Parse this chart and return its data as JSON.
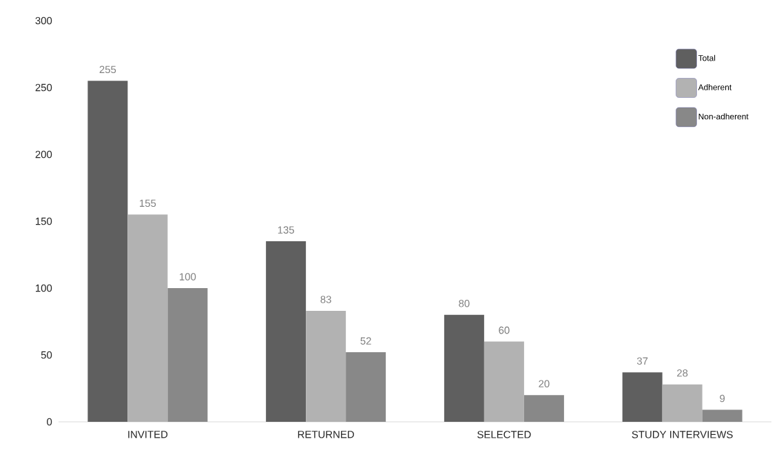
{
  "chart_data": {
    "type": "bar",
    "categories": [
      "INVITED",
      "RETURNED",
      "SELECTED",
      "STUDY INTERVIEWS"
    ],
    "series": [
      {
        "name": "Total",
        "color": "#5f5f5f",
        "values": [
          255,
          135,
          80,
          37
        ]
      },
      {
        "name": "Adherent",
        "color": "#b2b2b2",
        "values": [
          155,
          83,
          60,
          28
        ]
      },
      {
        "name": "Non-adherent",
        "color": "#888888",
        "values": [
          100,
          52,
          20,
          9
        ]
      }
    ],
    "ylim": [
      0,
      300
    ],
    "yticks": [
      0,
      50,
      100,
      150,
      200,
      250,
      300
    ],
    "data_labels": true,
    "legend": "top right",
    "grid": false
  }
}
